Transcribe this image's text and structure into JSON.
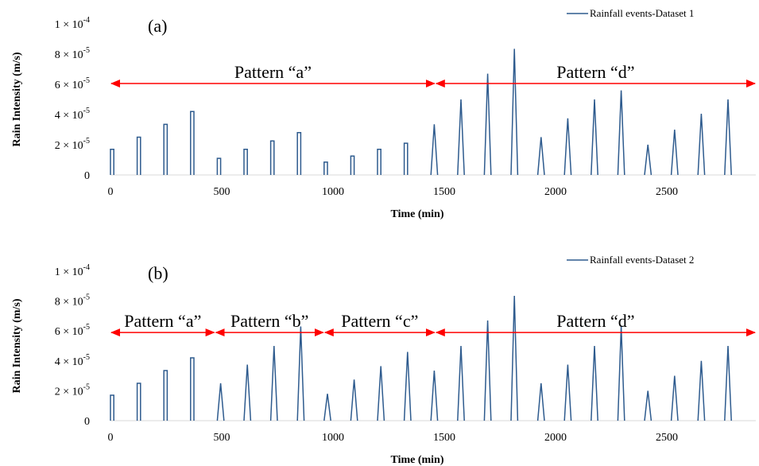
{
  "chart_data": [
    {
      "type": "line",
      "panel_label": "(a)",
      "xlabel": "Time (min)",
      "ylabel": "Rain Intensity (m/s)",
      "xlim": [
        0,
        2900
      ],
      "ylim": [
        0,
        0.0001
      ],
      "x_ticks": [
        0,
        500,
        1000,
        1500,
        2000,
        2500
      ],
      "y_ticks": [
        0,
        2e-05,
        4e-05,
        6e-05,
        8e-05,
        0.0001
      ],
      "y_tick_labels": [
        {
          "pre": "0",
          "sup": ""
        },
        {
          "pre": "2 × 10",
          "sup": "-5"
        },
        {
          "pre": "4 × 10",
          "sup": "-5"
        },
        {
          "pre": "6 × 10",
          "sup": "-5"
        },
        {
          "pre": "8 × 10",
          "sup": "-5"
        },
        {
          "pre": "1 × 10",
          "sup": "-4"
        }
      ],
      "series": [
        {
          "name": "Rainfall events-Dataset 1",
          "color": "#2e5b8e",
          "events": [
            {
              "start": 0,
              "peak": 1.7e-05,
              "shape": "rect"
            },
            {
              "start": 120,
              "peak": 2.5e-05,
              "shape": "rect"
            },
            {
              "start": 240,
              "peak": 3.35e-05,
              "shape": "rect"
            },
            {
              "start": 360,
              "peak": 4.2e-05,
              "shape": "rect"
            },
            {
              "start": 480,
              "peak": 1.1e-05,
              "shape": "rect"
            },
            {
              "start": 600,
              "peak": 1.7e-05,
              "shape": "rect"
            },
            {
              "start": 720,
              "peak": 2.25e-05,
              "shape": "rect"
            },
            {
              "start": 840,
              "peak": 2.8e-05,
              "shape": "rect"
            },
            {
              "start": 960,
              "peak": 8.5e-06,
              "shape": "rect"
            },
            {
              "start": 1080,
              "peak": 1.25e-05,
              "shape": "rect"
            },
            {
              "start": 1200,
              "peak": 1.7e-05,
              "shape": "rect"
            },
            {
              "start": 1320,
              "peak": 2.1e-05,
              "shape": "rect"
            },
            {
              "start": 1440,
              "peak": 3.35e-05,
              "shape": "tri"
            },
            {
              "start": 1560,
              "peak": 5e-05,
              "shape": "tri"
            },
            {
              "start": 1680,
              "peak": 6.7e-05,
              "shape": "tri"
            },
            {
              "start": 1800,
              "peak": 8.35e-05,
              "shape": "tri"
            },
            {
              "start": 1920,
              "peak": 2.5e-05,
              "shape": "tri"
            },
            {
              "start": 2040,
              "peak": 3.75e-05,
              "shape": "tri"
            },
            {
              "start": 2160,
              "peak": 5e-05,
              "shape": "tri"
            },
            {
              "start": 2280,
              "peak": 5.6e-05,
              "shape": "tri"
            },
            {
              "start": 2400,
              "peak": 2e-05,
              "shape": "tri"
            },
            {
              "start": 2520,
              "peak": 3e-05,
              "shape": "tri"
            },
            {
              "start": 2640,
              "peak": 4.05e-05,
              "shape": "tri"
            },
            {
              "start": 2760,
              "peak": 5e-05,
              "shape": "tri"
            }
          ]
        }
      ],
      "annotations": [
        {
          "text": "Pattern “a”",
          "x_start": 0,
          "x_end": 1460,
          "y": 6.05e-05
        },
        {
          "text": "Pattern “d”",
          "x_start": 1460,
          "x_end": 2900,
          "y": 6.05e-05
        }
      ]
    },
    {
      "type": "line",
      "panel_label": "(b)",
      "xlabel": "Time (min)",
      "ylabel": "Rain Intensity (m/s)",
      "xlim": [
        0,
        2900
      ],
      "ylim": [
        0,
        0.0001
      ],
      "x_ticks": [
        0,
        500,
        1000,
        1500,
        2000,
        2500
      ],
      "y_ticks": [
        0,
        2e-05,
        4e-05,
        6e-05,
        8e-05,
        0.0001
      ],
      "y_tick_labels": [
        {
          "pre": "0",
          "sup": ""
        },
        {
          "pre": "2 × 10",
          "sup": "-5"
        },
        {
          "pre": "4 × 10",
          "sup": "-5"
        },
        {
          "pre": "6 × 10",
          "sup": "-5"
        },
        {
          "pre": "8 × 10",
          "sup": "-5"
        },
        {
          "pre": "1 × 10",
          "sup": "-4"
        }
      ],
      "series": [
        {
          "name": "Rainfall events-Dataset 2",
          "color": "#2e5b8e",
          "events": [
            {
              "start": 0,
              "peak": 1.7e-05,
              "shape": "rect"
            },
            {
              "start": 120,
              "peak": 2.5e-05,
              "shape": "rect"
            },
            {
              "start": 240,
              "peak": 3.35e-05,
              "shape": "rect"
            },
            {
              "start": 360,
              "peak": 4.2e-05,
              "shape": "rect"
            },
            {
              "start": 480,
              "peak": 2.5e-05,
              "shape": "tri"
            },
            {
              "start": 600,
              "peak": 3.75e-05,
              "shape": "tri"
            },
            {
              "start": 720,
              "peak": 5e-05,
              "shape": "tri"
            },
            {
              "start": 840,
              "peak": 6.3e-05,
              "shape": "tri"
            },
            {
              "start": 960,
              "peak": 1.8e-05,
              "shape": "tri"
            },
            {
              "start": 1080,
              "peak": 2.75e-05,
              "shape": "tri"
            },
            {
              "start": 1200,
              "peak": 3.65e-05,
              "shape": "tri"
            },
            {
              "start": 1320,
              "peak": 4.6e-05,
              "shape": "tri"
            },
            {
              "start": 1440,
              "peak": 3.35e-05,
              "shape": "tri"
            },
            {
              "start": 1560,
              "peak": 5e-05,
              "shape": "tri"
            },
            {
              "start": 1680,
              "peak": 6.7e-05,
              "shape": "tri"
            },
            {
              "start": 1800,
              "peak": 8.35e-05,
              "shape": "tri"
            },
            {
              "start": 1920,
              "peak": 2.5e-05,
              "shape": "tri"
            },
            {
              "start": 2040,
              "peak": 3.75e-05,
              "shape": "tri"
            },
            {
              "start": 2160,
              "peak": 5e-05,
              "shape": "tri"
            },
            {
              "start": 2280,
              "peak": 6.3e-05,
              "shape": "tri"
            },
            {
              "start": 2400,
              "peak": 2e-05,
              "shape": "tri"
            },
            {
              "start": 2520,
              "peak": 3e-05,
              "shape": "tri"
            },
            {
              "start": 2640,
              "peak": 4e-05,
              "shape": "tri"
            },
            {
              "start": 2760,
              "peak": 5e-05,
              "shape": "tri"
            }
          ]
        }
      ],
      "annotations": [
        {
          "text": "Pattern “a”",
          "x_start": 0,
          "x_end": 470,
          "y": 5.9e-05
        },
        {
          "text": "Pattern “b”",
          "x_start": 470,
          "x_end": 960,
          "y": 5.9e-05
        },
        {
          "text": "Pattern “c”",
          "x_start": 960,
          "x_end": 1460,
          "y": 5.9e-05
        },
        {
          "text": "Pattern “d”",
          "x_start": 1460,
          "x_end": 2900,
          "y": 5.9e-05
        }
      ]
    }
  ]
}
